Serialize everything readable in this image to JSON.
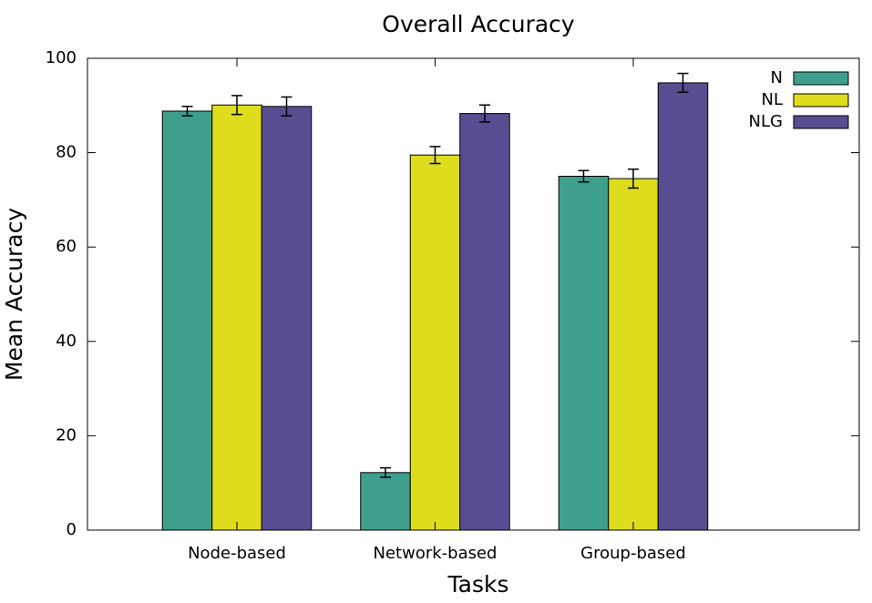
{
  "chart_data": {
    "type": "bar",
    "title": "Overall Accuracy",
    "xlabel": "Tasks",
    "ylabel": "Mean Accuracy",
    "ylim": [
      0,
      100
    ],
    "yticks": [
      0,
      20,
      40,
      60,
      80,
      100
    ],
    "categories": [
      "Node-based",
      "Network-based",
      "Group-based"
    ],
    "series": [
      {
        "name": "N",
        "color": "#3e9f8d",
        "values": [
          88.8,
          12.2,
          75.0
        ],
        "errors": [
          1.0,
          1.0,
          1.2
        ]
      },
      {
        "name": "NL",
        "color": "#dddd1e",
        "values": [
          90.1,
          79.5,
          74.5
        ],
        "errors": [
          2.0,
          1.8,
          2.0
        ]
      },
      {
        "name": "NLG",
        "color": "#574d90",
        "values": [
          89.8,
          88.3,
          94.8
        ],
        "errors": [
          2.0,
          1.8,
          2.0
        ]
      }
    ],
    "legend_position": "top-right",
    "grid": false,
    "error_bars": true
  }
}
